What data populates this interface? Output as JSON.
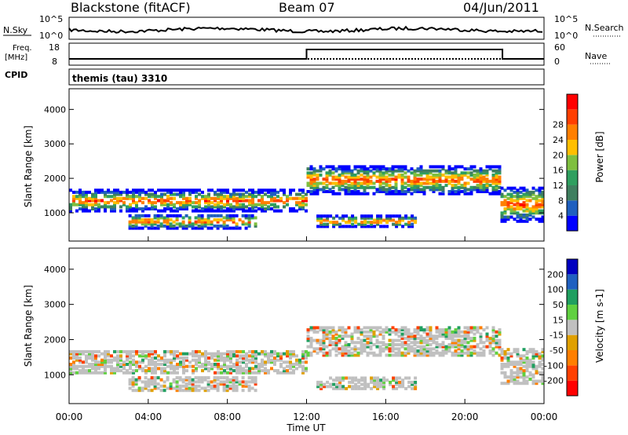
{
  "header": {
    "station": "Blackstone (fitACF)",
    "beam": "Beam 07",
    "date": "04/Jun/2011"
  },
  "labels": {
    "nsky": "N.Sky",
    "nsearch": "N.Search",
    "freq_line1": "Freq.",
    "freq_line2": "[MHz]",
    "nave": "Nave",
    "cpid": "CPID",
    "cpid_value": "themis (tau) 3310"
  },
  "noise_panel": {
    "left_ticks": [
      "10^5",
      "10^0"
    ],
    "right_ticks": [
      "10^5",
      "10^0"
    ]
  },
  "freq_panel": {
    "left_ticks": [
      "18",
      "8"
    ],
    "right_ticks": [
      "60",
      "0"
    ],
    "nave_step_hours": [
      12.0,
      21.9
    ]
  },
  "x_axis": {
    "label": "Time UT",
    "ticks": [
      "00:00",
      "04:00",
      "08:00",
      "12:00",
      "16:00",
      "20:00",
      "00:00"
    ]
  },
  "colors": {
    "power_scale": [
      "#0000ff",
      "#1f5fbf",
      "#3f7f5f",
      "#2f9f5f",
      "#7fbf3f",
      "#ffbf00",
      "#ff7f00",
      "#ff3f00",
      "#ff0000"
    ],
    "velocity_scale": [
      "#0000c0",
      "#2060c0",
      "#209f60",
      "#60d040",
      "#c0c0c0",
      "#e0a000",
      "#ff7f00",
      "#ff4000",
      "#ff0000"
    ]
  },
  "chart_data": [
    {
      "type": "heatmap",
      "name": "power",
      "ylabel": "Slant Range [km]",
      "xlabel": "Time UT",
      "yticks": [
        "1000",
        "2000",
        "3000",
        "4000"
      ],
      "ylim": [
        180,
        4600
      ],
      "xlim_hours": [
        0,
        24
      ],
      "colorbar": {
        "label": "Power [dB]",
        "ticks": [
          "4",
          "8",
          "12",
          "16",
          "20",
          "24",
          "28"
        ]
      },
      "echo_bands": [
        {
          "t_start": 0.0,
          "t_end": 12.0,
          "range_center": 1400,
          "range_width": 300
        },
        {
          "t_start": 3.0,
          "t_end": 9.5,
          "range_center": 800,
          "range_width": 200
        },
        {
          "t_start": 12.0,
          "t_end": 21.8,
          "range_center": 2000,
          "range_width": 400
        },
        {
          "t_start": 12.5,
          "t_end": 17.5,
          "range_center": 800,
          "range_width": 150
        },
        {
          "t_start": 21.8,
          "t_end": 24.0,
          "range_center": 1300,
          "range_width": 500
        }
      ]
    },
    {
      "type": "heatmap",
      "name": "velocity",
      "ylabel": "Slant Range [km]",
      "xlabel": "Time UT",
      "yticks": [
        "1000",
        "2000",
        "3000",
        "4000"
      ],
      "ylim": [
        180,
        4600
      ],
      "xlim_hours": [
        0,
        24
      ],
      "colorbar": {
        "label": "Velocity [m s-1]",
        "ticks": [
          "200",
          "100",
          "50",
          "15",
          "-15",
          "-50",
          "-100",
          "-200"
        ]
      }
    }
  ]
}
